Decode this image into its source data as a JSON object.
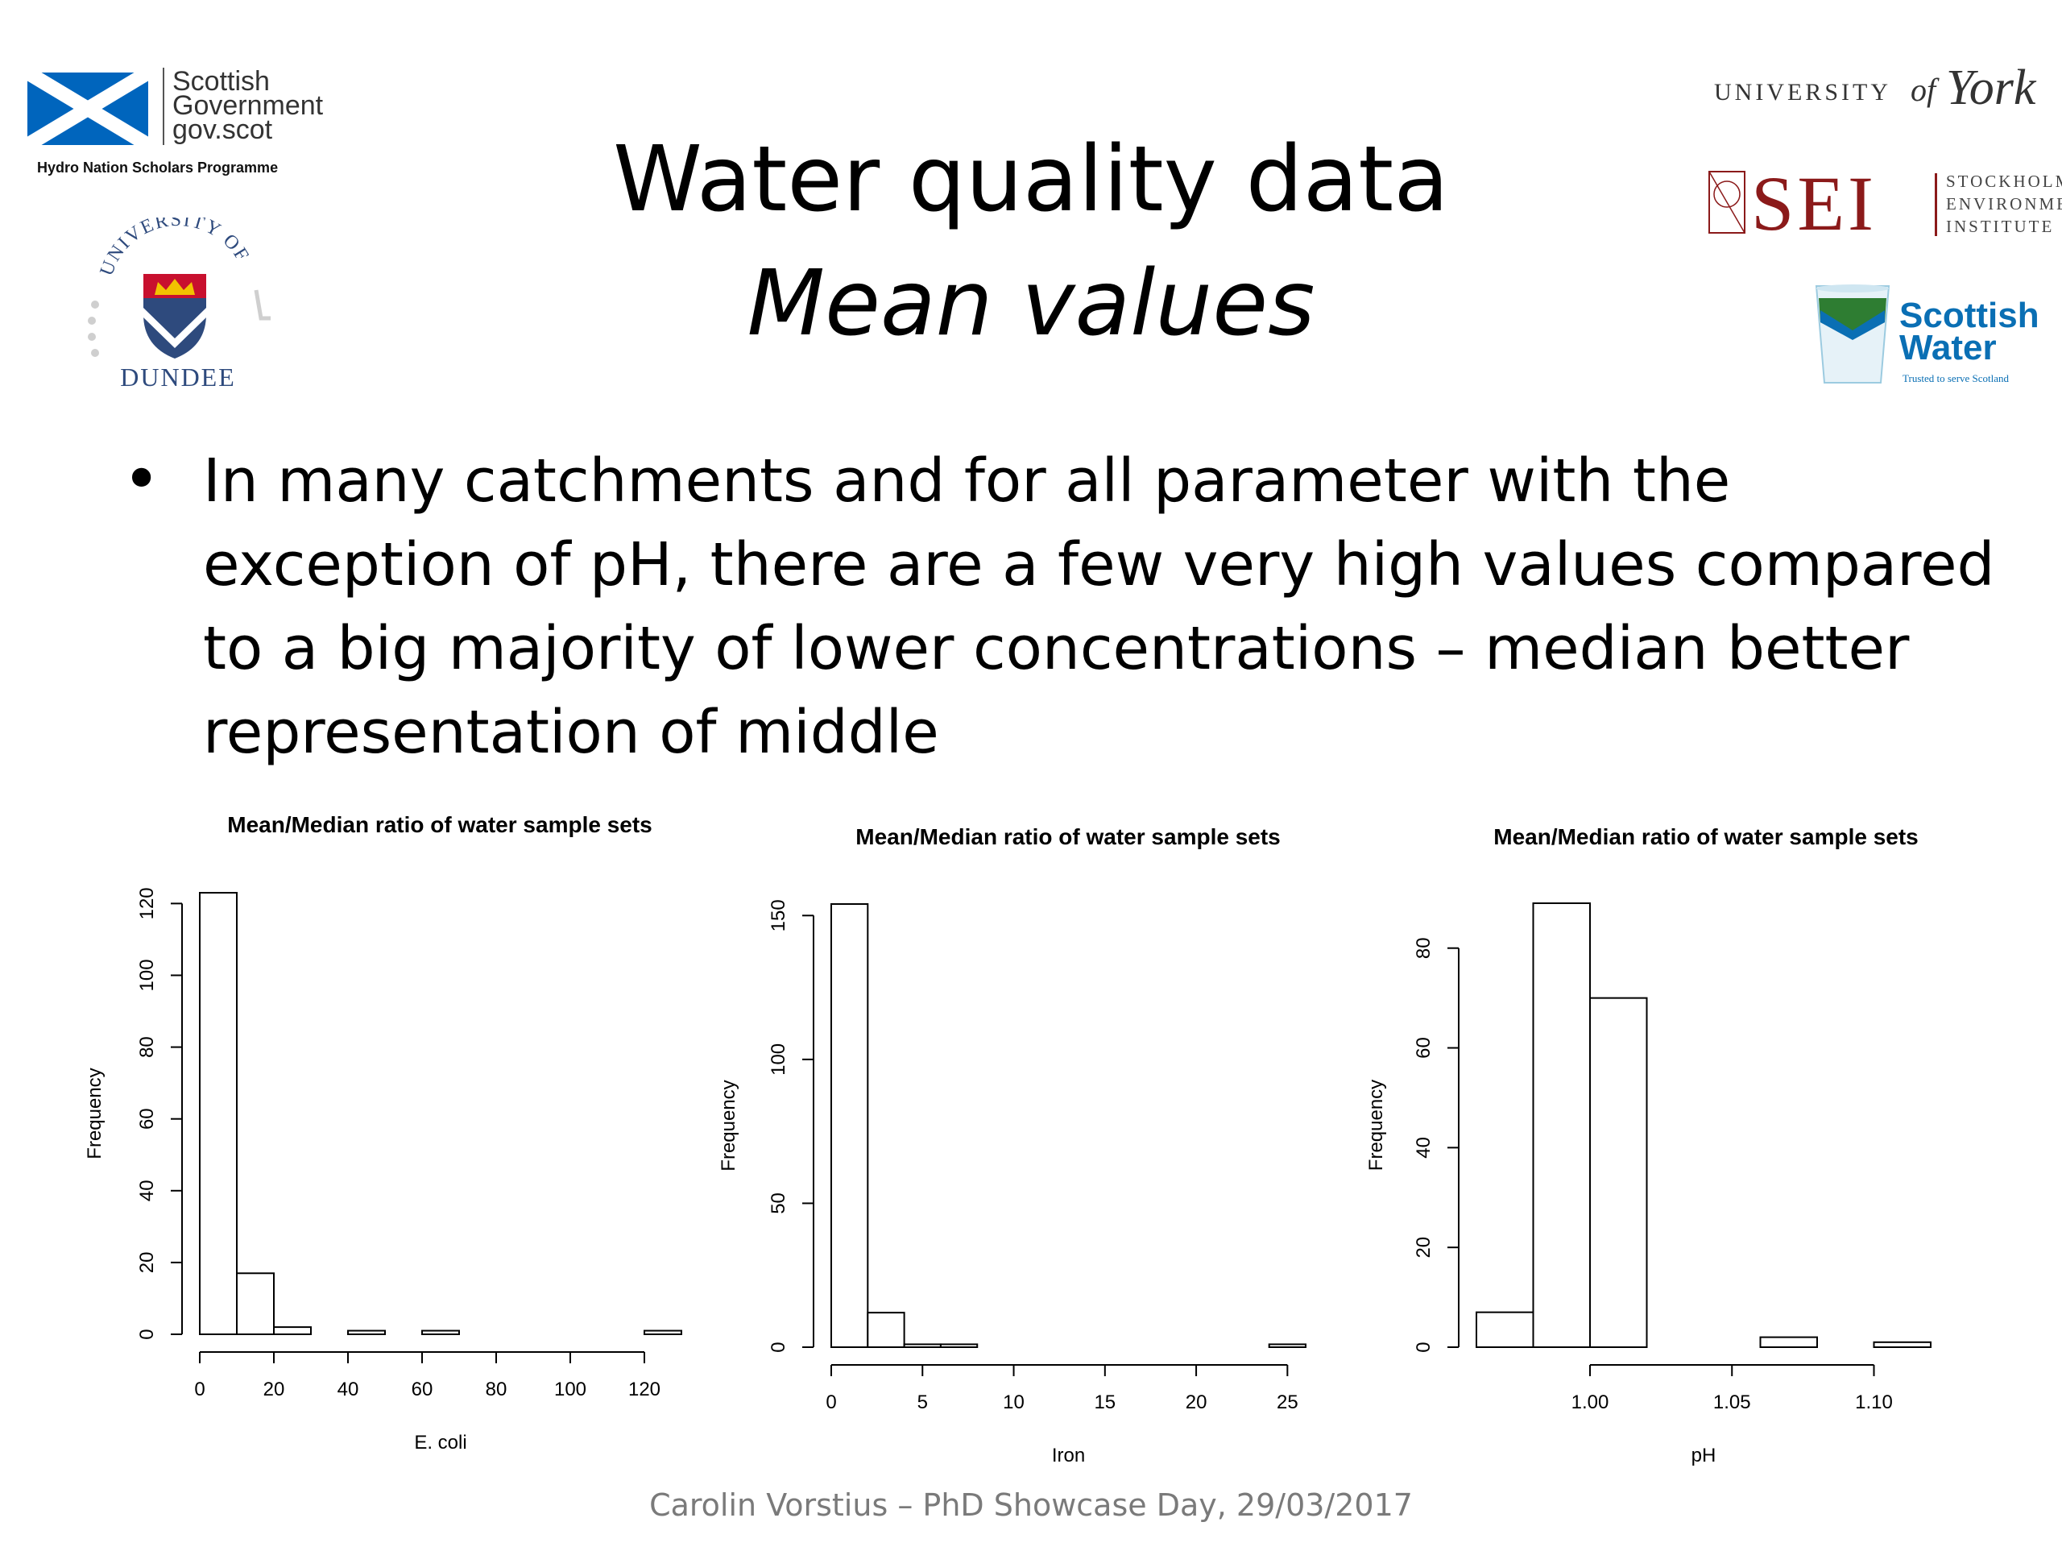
{
  "slide": {
    "title_line1": "Water quality data",
    "title_line2": "Mean values",
    "bullet": "In many catchments and for all parameter with the exception of pH, there are a few very high values compared to a big majority of lower concentrations – median better representation of middle",
    "footer": "Carolin Vorstius – PhD Showcase Day, 29/03/2017"
  },
  "logos": {
    "scottish_government": {
      "line1": "Scottish",
      "line2": "Government",
      "line3": "gov.scot",
      "programme": "Hydro Nation Scholars Programme",
      "accent": "#0065bd"
    },
    "dundee": {
      "arc_text": "UNIVERSITY OF",
      "name": "DUNDEE",
      "accent": "#2e4a7d"
    },
    "york": {
      "prefix": "UNIVERSITY",
      "of": "of",
      "name": "York"
    },
    "sei": {
      "mark": "SEI",
      "line1": "STOCKHOLM",
      "line2": "ENVIRONMENT",
      "line3": "INSTITUTE",
      "accent": "#8b1a1a"
    },
    "scottish_water": {
      "line1": "Scottish",
      "line2": "Water",
      "tagline": "Trusted to serve Scotland",
      "accent": "#0a6fb4"
    }
  },
  "chart_data": [
    {
      "type": "bar",
      "title": "Mean/Median ratio of water sample sets",
      "xlabel": "E. coli",
      "ylabel": "Frequency",
      "bin_edges": [
        0,
        10,
        20,
        30,
        40,
        50,
        60,
        70,
        80,
        90,
        100,
        110,
        120,
        130
      ],
      "values": [
        123,
        17,
        2,
        0,
        1,
        0,
        1,
        0,
        0,
        0,
        0,
        0,
        1
      ],
      "xlim": [
        0,
        130
      ],
      "xticks": [
        0,
        20,
        40,
        60,
        80,
        100,
        120
      ],
      "ylim": [
        0,
        123
      ],
      "yticks": [
        0,
        20,
        40,
        60,
        80,
        100,
        120
      ],
      "grid": false
    },
    {
      "type": "bar",
      "title": "Mean/Median ratio of water sample sets",
      "xlabel": "Iron",
      "ylabel": "Frequency",
      "bin_edges": [
        0,
        2,
        4,
        6,
        8,
        10,
        12,
        14,
        16,
        18,
        20,
        22,
        24,
        26
      ],
      "values": [
        154,
        12,
        1,
        1,
        0,
        0,
        0,
        0,
        0,
        0,
        0,
        0,
        1
      ],
      "xlim": [
        0,
        26
      ],
      "xticks": [
        0,
        5,
        10,
        15,
        20,
        25
      ],
      "ylim": [
        0,
        154
      ],
      "yticks": [
        0,
        50,
        100,
        150
      ],
      "grid": false
    },
    {
      "type": "bar",
      "title": "Mean/Median ratio of water sample sets",
      "xlabel": "pH",
      "ylabel": "Frequency",
      "bin_edges": [
        0.96,
        0.98,
        1.0,
        1.02,
        1.04,
        1.06,
        1.08,
        1.1,
        1.12
      ],
      "values": [
        7,
        89,
        70,
        0,
        0,
        2,
        0,
        1
      ],
      "xlim": [
        0.96,
        1.12
      ],
      "xticks": [
        1.0,
        1.05,
        1.1
      ],
      "xtick_labels": [
        "1.00",
        "1.05",
        "1.10"
      ],
      "ylim": [
        0,
        89
      ],
      "yticks": [
        0,
        20,
        40,
        60,
        80
      ],
      "grid": false
    }
  ]
}
